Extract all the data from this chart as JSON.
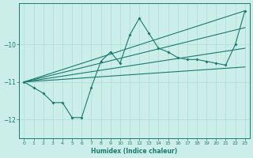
{
  "xlabel": "Humidex (Indice chaleur)",
  "background_color": "#cceee8",
  "line_color": "#1a7a6e",
  "grid_color": "#aaddd8",
  "xlim": [
    -0.5,
    23.5
  ],
  "ylim": [
    -12.5,
    -8.9
  ],
  "yticks": [
    -12,
    -11,
    -10
  ],
  "xticks": [
    0,
    1,
    2,
    3,
    4,
    5,
    6,
    7,
    8,
    9,
    10,
    11,
    12,
    13,
    14,
    15,
    16,
    17,
    18,
    19,
    20,
    21,
    22,
    23
  ],
  "curve1_x": [
    0,
    1,
    2,
    3,
    4,
    5,
    6,
    7,
    8,
    9,
    10,
    11,
    12,
    13,
    14,
    15,
    16,
    17,
    18,
    19,
    20,
    21,
    22,
    23
  ],
  "curve1_y": [
    -11.0,
    -11.15,
    -11.3,
    -11.55,
    -11.55,
    -11.95,
    -11.95,
    -11.15,
    -10.45,
    -10.2,
    -10.5,
    -9.75,
    -9.3,
    -9.7,
    -10.1,
    -10.2,
    -10.35,
    -10.4,
    -10.4,
    -10.45,
    -10.5,
    -10.55,
    -10.0,
    -9.1
  ],
  "line2_x": [
    0,
    23
  ],
  "line2_y": [
    -11.0,
    -9.1
  ],
  "line3_x": [
    0,
    23
  ],
  "line3_y": [
    -11.0,
    -9.55
  ],
  "line4_x": [
    0,
    23
  ],
  "line4_y": [
    -11.0,
    -10.1
  ],
  "line5_x": [
    0,
    23
  ],
  "line5_y": [
    -11.0,
    -10.6
  ]
}
